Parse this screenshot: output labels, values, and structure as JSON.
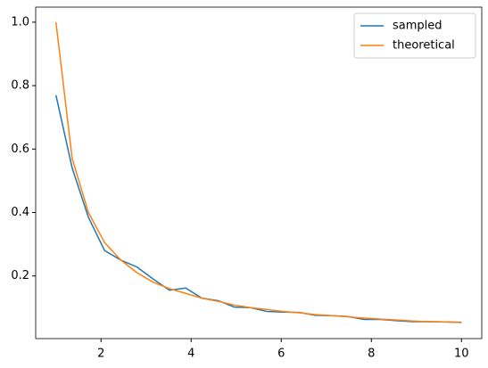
{
  "chart_data": {
    "type": "line",
    "x": [
      1,
      1.36,
      1.72,
      2.08,
      2.44,
      2.8,
      3.16,
      3.52,
      3.88,
      4.24,
      4.6,
      4.96,
      5.32,
      5.68,
      6.04,
      6.4,
      6.76,
      7.12,
      7.48,
      7.84,
      8.2,
      8.56,
      8.92,
      9.28,
      9.64,
      10
    ],
    "series": [
      {
        "name": "sampled",
        "color": "#1f77b4",
        "values": [
          0.77,
          0.54,
          0.385,
          0.28,
          0.25,
          0.228,
          0.19,
          0.155,
          0.162,
          0.13,
          0.122,
          0.102,
          0.1,
          0.088,
          0.086,
          0.085,
          0.076,
          0.075,
          0.072,
          0.063,
          0.063,
          0.059,
          0.056,
          0.056,
          0.055,
          0.054
        ]
      },
      {
        "name": "theoretical",
        "color": "#ff7f0e",
        "values": [
          1.0,
          0.57,
          0.4,
          0.305,
          0.25,
          0.21,
          0.18,
          0.16,
          0.145,
          0.13,
          0.12,
          0.108,
          0.1,
          0.094,
          0.088,
          0.084,
          0.078,
          0.075,
          0.071,
          0.067,
          0.064,
          0.061,
          0.058,
          0.056,
          0.055,
          0.053
        ]
      }
    ],
    "xlim": [
      0.55,
      10.45
    ],
    "ylim": [
      0.0025,
      1.0475
    ],
    "xticks": [
      2,
      4,
      6,
      8,
      10
    ],
    "yticks": [
      0.2,
      0.4,
      0.6,
      0.8,
      {
        "value": 1,
        "label": "1.0"
      }
    ],
    "grid": false,
    "legend": "upper-right"
  }
}
